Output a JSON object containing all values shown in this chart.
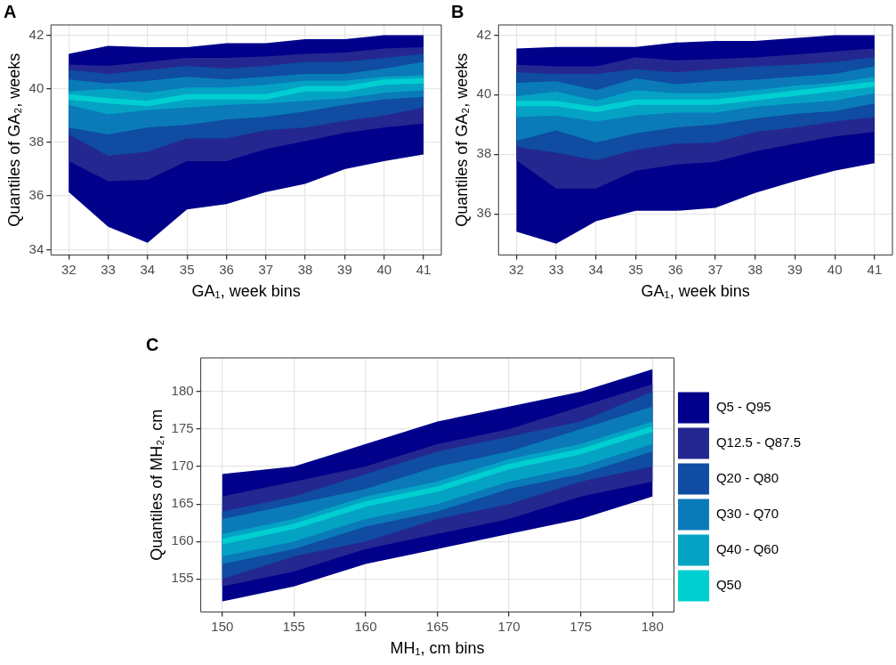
{
  "chart_data": [
    {
      "type": "area",
      "title": "A",
      "xlabel": "GA₁, week bins",
      "ylabel": "Quantiles of GA₂, weeks",
      "x": [
        32,
        33,
        34,
        35,
        36,
        37,
        38,
        39,
        40,
        41
      ],
      "xlim": [
        31.55,
        41.45
      ],
      "xticks": [
        32,
        33,
        34,
        35,
        36,
        37,
        38,
        39,
        40,
        41
      ],
      "ylim": [
        33.8,
        42.38
      ],
      "yticks": [
        34,
        36,
        38,
        40,
        42
      ],
      "grid": true,
      "legend": false,
      "series": [
        {
          "type": "area",
          "color": "#00008b",
          "values": [
            null,
            null,
            null,
            null,
            null,
            null,
            null,
            null,
            null,
            null
          ],
          "lower": [
            36.15,
            34.85,
            34.25,
            35.5,
            35.7,
            36.15,
            36.45,
            37.0,
            37.3,
            37.55
          ],
          "upper": [
            41.3,
            41.6,
            41.55,
            41.55,
            41.7,
            41.7,
            41.85,
            41.85,
            42.0,
            42.0
          ]
        },
        {
          "type": "area",
          "color": "#24278f",
          "values": [
            null,
            null,
            null,
            null,
            null,
            null,
            null,
            null,
            null,
            null
          ],
          "lower": [
            37.3,
            36.55,
            36.6,
            37.3,
            37.3,
            37.75,
            38.05,
            38.35,
            38.55,
            38.7
          ],
          "upper": [
            40.9,
            40.85,
            41.0,
            41.15,
            41.15,
            41.2,
            41.3,
            41.35,
            41.5,
            41.55
          ]
        },
        {
          "type": "area",
          "color": "#0f4ca2",
          "values": [
            null,
            null,
            null,
            null,
            null,
            null,
            null,
            null,
            null,
            null
          ],
          "lower": [
            38.3,
            37.5,
            37.65,
            38.15,
            38.15,
            38.45,
            38.55,
            38.8,
            39.0,
            39.3
          ],
          "upper": [
            40.7,
            40.55,
            40.7,
            40.85,
            40.75,
            40.85,
            41.0,
            41.0,
            41.15,
            41.3
          ]
        },
        {
          "type": "area",
          "color": "#0a7bb8",
          "values": [
            null,
            null,
            null,
            null,
            null,
            null,
            null,
            null,
            null,
            null
          ],
          "lower": [
            38.55,
            38.3,
            38.55,
            38.65,
            38.85,
            38.95,
            39.15,
            39.4,
            39.6,
            39.7
          ],
          "upper": [
            40.35,
            40.2,
            40.3,
            40.45,
            40.35,
            40.45,
            40.55,
            40.55,
            40.75,
            41.0
          ]
        },
        {
          "type": "area",
          "color": "#04a3c4",
          "values": [
            null,
            null,
            null,
            null,
            null,
            null,
            null,
            null,
            null,
            null
          ],
          "lower": [
            39.4,
            39.05,
            39.2,
            39.3,
            39.4,
            39.45,
            39.55,
            39.65,
            39.85,
            39.95
          ],
          "upper": [
            39.9,
            40.0,
            39.85,
            40.05,
            40.05,
            40.15,
            40.3,
            40.3,
            40.45,
            40.5
          ]
        },
        {
          "type": "line",
          "color": "#00cfd1",
          "values": [
            39.7,
            39.55,
            39.45,
            39.7,
            39.7,
            39.7,
            40.0,
            40.0,
            40.25,
            40.3
          ]
        }
      ]
    },
    {
      "type": "area",
      "title": "B",
      "xlabel": "GA₁, week bins",
      "ylabel": "Quantiles of GA₂, weeks",
      "x": [
        32,
        33,
        34,
        35,
        36,
        37,
        38,
        39,
        40,
        41
      ],
      "xlim": [
        31.55,
        41.45
      ],
      "xticks": [
        32,
        33,
        34,
        35,
        36,
        37,
        38,
        39,
        40,
        41
      ],
      "ylim": [
        34.62,
        42.34
      ],
      "yticks": [
        36,
        38,
        40,
        42
      ],
      "grid": true,
      "legend": false,
      "series": [
        {
          "type": "area",
          "color": "#00008b",
          "values": [
            null,
            null,
            null,
            null,
            null,
            null,
            null,
            null,
            null,
            null
          ],
          "lower": [
            35.4,
            35.0,
            35.75,
            36.1,
            36.1,
            36.2,
            36.7,
            37.1,
            37.45,
            37.7
          ],
          "upper": [
            41.55,
            41.6,
            41.6,
            41.6,
            41.75,
            41.8,
            41.8,
            41.9,
            42.0,
            42.0
          ]
        },
        {
          "type": "area",
          "color": "#24278f",
          "values": [
            null,
            null,
            null,
            null,
            null,
            null,
            null,
            null,
            null,
            null
          ],
          "lower": [
            37.8,
            36.85,
            36.85,
            37.45,
            37.65,
            37.75,
            38.1,
            38.35,
            38.6,
            38.75
          ],
          "upper": [
            41.0,
            40.95,
            40.95,
            41.25,
            41.15,
            41.2,
            41.25,
            41.35,
            41.45,
            41.55
          ]
        },
        {
          "type": "area",
          "color": "#0f4ca2",
          "values": [
            null,
            null,
            null,
            null,
            null,
            null,
            null,
            null,
            null,
            null
          ],
          "lower": [
            38.25,
            38.05,
            37.8,
            38.15,
            38.35,
            38.4,
            38.75,
            38.9,
            39.1,
            39.25
          ],
          "upper": [
            40.75,
            40.7,
            40.7,
            40.85,
            40.75,
            40.85,
            40.95,
            41.0,
            41.1,
            41.25
          ]
        },
        {
          "type": "area",
          "color": "#0a7bb8",
          "values": [
            null,
            null,
            null,
            null,
            null,
            null,
            null,
            null,
            null,
            null
          ],
          "lower": [
            38.45,
            38.8,
            38.4,
            38.7,
            38.9,
            39.0,
            39.2,
            39.35,
            39.45,
            39.7
          ],
          "upper": [
            40.4,
            40.45,
            40.15,
            40.55,
            40.35,
            40.45,
            40.5,
            40.6,
            40.7,
            40.95
          ]
        },
        {
          "type": "area",
          "color": "#04a3c4",
          "values": [
            null,
            null,
            null,
            null,
            null,
            null,
            null,
            null,
            null,
            null
          ],
          "lower": [
            39.25,
            39.3,
            39.1,
            39.3,
            39.4,
            39.4,
            39.6,
            39.7,
            39.8,
            40.05
          ],
          "upper": [
            39.95,
            40.1,
            39.8,
            40.15,
            40.05,
            40.05,
            40.15,
            40.3,
            40.4,
            40.6
          ]
        },
        {
          "type": "line",
          "color": "#00cfd1",
          "values": [
            39.7,
            39.7,
            39.5,
            39.75,
            39.75,
            39.75,
            39.9,
            40.05,
            40.2,
            40.35
          ]
        }
      ]
    },
    {
      "type": "area",
      "title": "C",
      "xlabel": "MH₁, cm bins",
      "ylabel": "Quantiles of MH₂, cm",
      "x": [
        150,
        155,
        160,
        165,
        170,
        175,
        180
      ],
      "xlim": [
        148.5,
        181.5
      ],
      "xticks": [
        150,
        155,
        160,
        165,
        170,
        175,
        180
      ],
      "ylim": [
        150.6,
        184.5
      ],
      "yticks": [
        155,
        160,
        165,
        170,
        175,
        180
      ],
      "grid": true,
      "legend": "right",
      "series": [
        {
          "type": "area",
          "name": "Q5 - Q95",
          "color": "#00008b",
          "values": [
            null,
            null,
            null,
            null,
            null,
            null,
            null
          ],
          "lower": [
            152,
            154,
            157,
            159,
            161,
            163,
            166
          ],
          "upper": [
            169,
            170,
            173,
            176,
            178,
            180,
            183
          ]
        },
        {
          "type": "area",
          "name": "Q12.5 - Q87.5",
          "color": "#24278f",
          "values": [
            null,
            null,
            null,
            null,
            null,
            null,
            null
          ],
          "lower": [
            154,
            156,
            159,
            161,
            163,
            166,
            168
          ],
          "upper": [
            166,
            168,
            170,
            173,
            175,
            178,
            181
          ]
        },
        {
          "type": "area",
          "name": "Q20 - Q80",
          "color": "#0f4ca2",
          "values": [
            null,
            null,
            null,
            null,
            null,
            null,
            null
          ],
          "lower": [
            155,
            158,
            160,
            163,
            165,
            168,
            170
          ],
          "upper": [
            164,
            166,
            169,
            172,
            174,
            176,
            180
          ]
        },
        {
          "type": "area",
          "name": "Q30 - Q70",
          "color": "#0a7bb8",
          "values": [
            null,
            null,
            null,
            null,
            null,
            null,
            null
          ],
          "lower": [
            157,
            159,
            162,
            164,
            167,
            169,
            172
          ],
          "upper": [
            163,
            165,
            167,
            170,
            172,
            175,
            178
          ]
        },
        {
          "type": "area",
          "name": "Q40 - Q60",
          "color": "#04a3c4",
          "values": [
            null,
            null,
            null,
            null,
            null,
            null,
            null
          ],
          "lower": [
            158,
            160,
            163,
            165,
            168,
            170,
            173
          ],
          "upper": [
            161,
            163,
            166,
            168,
            171,
            173,
            176
          ]
        },
        {
          "type": "line",
          "name": "Q50",
          "color": "#00cfd1",
          "values": [
            160,
            162,
            165,
            167,
            170,
            172,
            175
          ]
        }
      ]
    }
  ]
}
